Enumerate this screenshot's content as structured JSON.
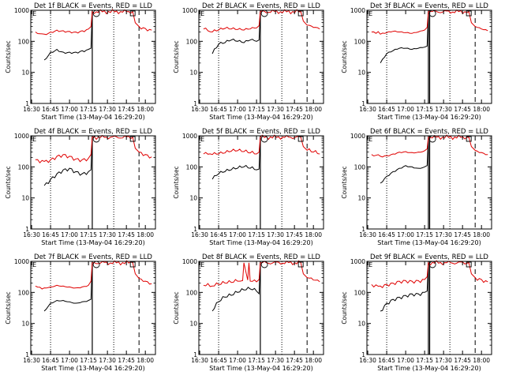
{
  "figure": {
    "ylabel": "Counts/sec",
    "xlabel": "Start Time (13-May-04 16:29:20)",
    "x_ticks": [
      "16:30",
      "16:45",
      "17:00",
      "17:15",
      "17:30",
      "17:45",
      "18:00"
    ],
    "y_ticks": [
      "1",
      "10",
      "100",
      "1000"
    ],
    "colors": {
      "events": "#000000",
      "lld": "#e00000",
      "axes": "#000000"
    }
  },
  "chart_data": [
    {
      "type": "line",
      "title": "Det 1f BLACK = Events, RED = LLD",
      "xlim": [
        "16:29:20",
        "18:08:00"
      ],
      "ylim": [
        1,
        1000
      ],
      "yscale": "log",
      "series": [
        {
          "name": "Events",
          "x": [
            "16:40",
            "16:45",
            "16:50",
            "16:55",
            "17:00",
            "17:05",
            "17:10",
            "17:15",
            "17:17",
            "17:18"
          ],
          "values": [
            25,
            45,
            55,
            45,
            45,
            45,
            50,
            55,
            60,
            900
          ]
        },
        {
          "name": "LLD",
          "x": [
            "16:33",
            "16:40",
            "16:45",
            "16:50",
            "16:55",
            "17:00",
            "17:05",
            "17:10",
            "17:15",
            "17:17",
            "17:18",
            "17:50",
            "17:52",
            "17:55",
            "18:00",
            "18:05"
          ],
          "values": [
            200,
            170,
            200,
            230,
            220,
            210,
            200,
            220,
            250,
            300,
            900,
            900,
            400,
            300,
            260,
            230
          ]
        }
      ],
      "annotations": {
        "dotted_lines": [
          "16:45",
          "17:35"
        ],
        "solid_lines": [
          "17:18"
        ],
        "dashed_lines": [
          "17:55"
        ],
        "markers": {
          "circle": "17:20",
          "square": "17:50",
          "e": "16:30"
        }
      }
    },
    {
      "type": "line",
      "title": "Det 2f BLACK = Events, RED = LLD",
      "xlim": [
        "16:29:20",
        "18:08:00"
      ],
      "ylim": [
        1,
        1000
      ],
      "yscale": "log",
      "series": [
        {
          "name": "Events",
          "x": [
            "16:40",
            "16:45",
            "16:50",
            "16:55",
            "17:00",
            "17:05",
            "17:10",
            "17:15",
            "17:17",
            "17:18"
          ],
          "values": [
            40,
            80,
            90,
            110,
            100,
            90,
            110,
            100,
            110,
            900
          ]
        },
        {
          "name": "LLD",
          "x": [
            "16:33",
            "16:40",
            "16:45",
            "16:50",
            "16:55",
            "17:00",
            "17:05",
            "17:10",
            "17:15",
            "17:17",
            "17:18",
            "17:50",
            "17:52",
            "17:55",
            "18:00",
            "18:05"
          ],
          "values": [
            250,
            200,
            230,
            260,
            250,
            240,
            230,
            250,
            270,
            320,
            900,
            900,
            450,
            330,
            280,
            250
          ]
        }
      ],
      "annotations": {
        "dotted_lines": [
          "16:45",
          "17:35"
        ],
        "solid_lines": [
          "17:18"
        ],
        "dashed_lines": [
          "17:55"
        ],
        "markers": {
          "circle": "17:20",
          "square": "17:50",
          "e": "16:30"
        }
      }
    },
    {
      "type": "line",
      "title": "Det 3f BLACK = Events, RED = LLD",
      "xlim": [
        "16:29:20",
        "18:08:00"
      ],
      "ylim": [
        1,
        1000
      ],
      "yscale": "log",
      "series": [
        {
          "name": "Events",
          "x": [
            "16:40",
            "16:45",
            "16:50",
            "16:55",
            "17:00",
            "17:05",
            "17:10",
            "17:15",
            "17:17",
            "17:18"
          ],
          "values": [
            20,
            40,
            50,
            60,
            60,
            55,
            60,
            65,
            70,
            900
          ]
        },
        {
          "name": "LLD",
          "x": [
            "16:33",
            "16:40",
            "16:45",
            "16:50",
            "16:55",
            "17:00",
            "17:05",
            "17:10",
            "17:15",
            "17:17",
            "17:18",
            "17:50",
            "17:52",
            "17:55",
            "18:00",
            "18:05"
          ],
          "values": [
            200,
            170,
            190,
            210,
            200,
            190,
            180,
            200,
            230,
            280,
            900,
            900,
            400,
            300,
            250,
            220
          ]
        }
      ],
      "annotations": {
        "dotted_lines": [
          "16:45",
          "17:35"
        ],
        "solid_lines": [
          "17:18",
          "17:19"
        ],
        "dashed_lines": [
          "17:55"
        ],
        "markers": {
          "circle": "17:20",
          "square": "17:50",
          "e": "16:30"
        }
      }
    },
    {
      "type": "line",
      "title": "Det 4f BLACK = Events, RED = LLD",
      "xlim": [
        "16:29:20",
        "18:08:00"
      ],
      "ylim": [
        1,
        1000
      ],
      "yscale": "log",
      "series": [
        {
          "name": "Events",
          "x": [
            "16:40",
            "16:45",
            "16:50",
            "16:55",
            "17:00",
            "17:05",
            "17:10",
            "17:15",
            "17:17",
            "17:18"
          ],
          "values": [
            25,
            40,
            60,
            80,
            90,
            70,
            60,
            70,
            80,
            900
          ]
        },
        {
          "name": "LLD",
          "x": [
            "16:33",
            "16:40",
            "16:45",
            "16:50",
            "16:55",
            "17:00",
            "17:05",
            "17:10",
            "17:15",
            "17:17",
            "17:18",
            "17:50",
            "17:52",
            "17:55",
            "18:00",
            "18:05"
          ],
          "values": [
            170,
            150,
            170,
            220,
            250,
            220,
            180,
            170,
            190,
            250,
            900,
            900,
            400,
            300,
            250,
            210
          ]
        }
      ],
      "annotations": {
        "dotted_lines": [
          "16:45",
          "17:35"
        ],
        "solid_lines": [
          "17:18"
        ],
        "dashed_lines": [
          "17:55"
        ],
        "markers": {
          "circle": "17:20",
          "square": "17:50",
          "e": "16:30"
        }
      }
    },
    {
      "type": "line",
      "title": "Det 5f BLACK = Events, RED = LLD",
      "xlim": [
        "16:29:20",
        "18:08:00"
      ],
      "ylim": [
        1,
        1000
      ],
      "yscale": "log",
      "series": [
        {
          "name": "Events",
          "x": [
            "16:40",
            "16:45",
            "16:50",
            "16:55",
            "17:00",
            "17:05",
            "17:10",
            "17:15",
            "17:17",
            "17:18"
          ],
          "values": [
            40,
            60,
            70,
            80,
            90,
            100,
            90,
            80,
            85,
            900
          ]
        },
        {
          "name": "LLD",
          "x": [
            "16:33",
            "16:40",
            "16:45",
            "16:50",
            "16:55",
            "17:00",
            "17:05",
            "17:10",
            "17:15",
            "17:17",
            "17:18",
            "17:50",
            "17:52",
            "17:55",
            "18:00",
            "18:05"
          ],
          "values": [
            260,
            250,
            260,
            280,
            320,
            330,
            310,
            280,
            260,
            300,
            900,
            900,
            450,
            340,
            300,
            260
          ]
        }
      ],
      "annotations": {
        "dotted_lines": [
          "16:45",
          "17:35"
        ],
        "solid_lines": [
          "17:18"
        ],
        "dashed_lines": [
          "17:55"
        ],
        "markers": {
          "circle": "17:20",
          "square": "17:50",
          "e": "16:30"
        }
      }
    },
    {
      "type": "line",
      "title": "Det 6f BLACK = Events, RED = LLD",
      "xlim": [
        "16:29:20",
        "18:08:00"
      ],
      "ylim": [
        1,
        1000
      ],
      "yscale": "log",
      "series": [
        {
          "name": "Events",
          "x": [
            "16:40",
            "16:45",
            "16:50",
            "16:55",
            "17:00",
            "17:05",
            "17:10",
            "17:15",
            "17:17",
            "17:18"
          ],
          "values": [
            30,
            50,
            70,
            90,
            110,
            100,
            90,
            100,
            110,
            900
          ]
        },
        {
          "name": "LLD",
          "x": [
            "16:33",
            "16:40",
            "16:45",
            "16:50",
            "16:55",
            "17:00",
            "17:05",
            "17:10",
            "17:15",
            "17:17",
            "17:18",
            "17:50",
            "17:52",
            "17:55",
            "18:00",
            "18:05"
          ],
          "values": [
            250,
            220,
            230,
            260,
            300,
            310,
            290,
            300,
            330,
            380,
            900,
            900,
            450,
            340,
            290,
            250
          ]
        }
      ],
      "annotations": {
        "dotted_lines": [
          "16:45",
          "17:35"
        ],
        "solid_lines": [
          "17:18",
          "17:19"
        ],
        "dashed_lines": [
          "17:55"
        ],
        "markers": {
          "circle": "17:20",
          "square": "17:50",
          "e": "16:30"
        }
      }
    },
    {
      "type": "line",
      "title": "Det 7f BLACK = Events, RED = LLD",
      "xlim": [
        "16:29:20",
        "18:08:00"
      ],
      "ylim": [
        1,
        1000
      ],
      "yscale": "log",
      "series": [
        {
          "name": "Events",
          "x": [
            "16:40",
            "16:45",
            "16:50",
            "16:55",
            "17:00",
            "17:05",
            "17:10",
            "17:15",
            "17:17",
            "17:18"
          ],
          "values": [
            25,
            45,
            55,
            55,
            50,
            45,
            50,
            55,
            60,
            900
          ]
        },
        {
          "name": "LLD",
          "x": [
            "16:33",
            "16:40",
            "16:45",
            "16:50",
            "16:55",
            "17:00",
            "17:05",
            "17:10",
            "17:15",
            "17:17",
            "17:18",
            "17:50",
            "17:52",
            "17:55",
            "18:00",
            "18:05"
          ],
          "values": [
            160,
            140,
            150,
            170,
            160,
            150,
            140,
            150,
            170,
            230,
            900,
            900,
            400,
            280,
            230,
            190
          ]
        }
      ],
      "annotations": {
        "dotted_lines": [
          "16:45",
          "17:35"
        ],
        "solid_lines": [
          "17:18"
        ],
        "dashed_lines": [
          "17:55"
        ],
        "markers": {
          "circle": "17:20",
          "square": "17:50",
          "e": "16:30"
        }
      }
    },
    {
      "type": "line",
      "title": "Det 8f BLACK = Events, RED = LLD",
      "xlim": [
        "16:29:20",
        "18:08:00"
      ],
      "ylim": [
        1,
        1000
      ],
      "yscale": "log",
      "series": [
        {
          "name": "Events",
          "x": [
            "16:40",
            "16:45",
            "16:50",
            "16:55",
            "17:00",
            "17:05",
            "17:10",
            "17:15",
            "17:17",
            "17:18"
          ],
          "values": [
            25,
            50,
            70,
            80,
            100,
            120,
            130,
            110,
            90,
            900
          ]
        },
        {
          "name": "LLD",
          "x": [
            "16:33",
            "16:40",
            "16:45",
            "16:50",
            "16:55",
            "17:00",
            "17:04",
            "17:05",
            "17:08",
            "17:09",
            "17:10",
            "17:15",
            "17:17",
            "17:18",
            "17:50",
            "17:52",
            "17:55",
            "18:00",
            "18:05"
          ],
          "values": [
            170,
            160,
            180,
            200,
            210,
            230,
            240,
            900,
            250,
            900,
            230,
            220,
            260,
            900,
            900,
            400,
            300,
            250,
            220
          ]
        }
      ],
      "annotations": {
        "dotted_lines": [
          "16:45",
          "17:35"
        ],
        "solid_lines": [
          "17:18"
        ],
        "dashed_lines": [
          "17:55"
        ],
        "markers": {
          "circle": "17:20",
          "square": "17:50",
          "e": "16:30"
        }
      }
    },
    {
      "type": "line",
      "title": "Det 9f BLACK = Events, RED = LLD",
      "xlim": [
        "16:29:20",
        "18:08:00"
      ],
      "ylim": [
        1,
        1000
      ],
      "yscale": "log",
      "series": [
        {
          "name": "Events",
          "x": [
            "16:40",
            "16:45",
            "16:50",
            "16:55",
            "17:00",
            "17:05",
            "17:10",
            "17:15",
            "17:17",
            "17:18"
          ],
          "values": [
            25,
            45,
            60,
            70,
            80,
            90,
            90,
            100,
            110,
            900
          ]
        },
        {
          "name": "LLD",
          "x": [
            "16:33",
            "16:40",
            "16:45",
            "16:50",
            "16:55",
            "17:00",
            "17:05",
            "17:10",
            "17:15",
            "17:17",
            "17:18",
            "17:50",
            "17:52",
            "17:55",
            "18:00",
            "18:05"
          ],
          "values": [
            180,
            160,
            180,
            200,
            230,
            240,
            230,
            240,
            260,
            320,
            900,
            900,
            400,
            300,
            260,
            220
          ]
        }
      ],
      "annotations": {
        "dotted_lines": [
          "16:45",
          "17:35"
        ],
        "solid_lines": [
          "17:18",
          "17:19"
        ],
        "dashed_lines": [
          "17:55"
        ],
        "markers": {
          "circle": "17:20",
          "square": "17:50",
          "e": "16:30"
        }
      }
    }
  ]
}
